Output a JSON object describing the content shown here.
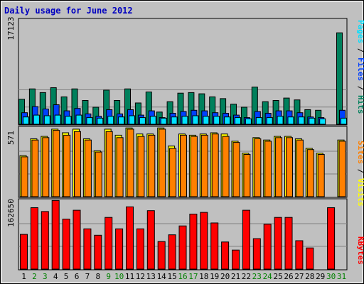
{
  "chart_data": [
    {
      "type": "bar",
      "panel": "hits-files-pages",
      "title": "Daily usage for June 2012",
      "ylim": [
        0,
        17123
      ],
      "y_tick_labels": [
        "17123"
      ],
      "legend_parts": [
        "Pages",
        "Files",
        "Hits"
      ],
      "legend_separator": " / ",
      "categories": [
        "1",
        "2",
        "3",
        "4",
        "5",
        "6",
        "7",
        "8",
        "9",
        "10",
        "11",
        "12",
        "13",
        "14",
        "15",
        "16",
        "17",
        "18",
        "19",
        "20",
        "21",
        "22",
        "23",
        "24",
        "25",
        "26",
        "27",
        "28",
        "29",
        "30",
        "31"
      ],
      "series": [
        {
          "name": "Hits",
          "color": "#00805c",
          "values": [
            4100,
            5800,
            5200,
            6000,
            4500,
            5800,
            3900,
            2800,
            5600,
            3900,
            5800,
            3500,
            5300,
            2000,
            3700,
            5100,
            5200,
            5000,
            4500,
            4200,
            3300,
            2800,
            6100,
            3700,
            3900,
            4300,
            4000,
            2400,
            2300,
            0,
            15000
          ]
        },
        {
          "name": "Files",
          "color": "#0040ff",
          "values": [
            1900,
            2900,
            2500,
            3200,
            2200,
            2600,
            1700,
            1300,
            2400,
            1700,
            2400,
            1500,
            2200,
            1100,
            1800,
            2100,
            2300,
            2200,
            1900,
            1800,
            1500,
            1100,
            2100,
            1800,
            2200,
            2200,
            1900,
            1200,
            1100,
            0,
            2300
          ]
        },
        {
          "name": "Pages",
          "color": "#00e0ff",
          "values": [
            1200,
            1500,
            1400,
            1500,
            1300,
            1500,
            1100,
            1000,
            1300,
            1200,
            1400,
            1100,
            1300,
            1000,
            1200,
            1300,
            1400,
            1300,
            1300,
            1200,
            1100,
            900,
            1100,
            1100,
            1300,
            1200,
            1200,
            1000,
            900,
            0,
            1000
          ]
        }
      ]
    },
    {
      "type": "bar",
      "panel": "visits-sites",
      "ylim": [
        0,
        571
      ],
      "y_tick_labels": [
        "571"
      ],
      "legend_parts": [
        "Sites",
        "Visits"
      ],
      "legend_separator": " / ",
      "categories": [
        "1",
        "2",
        "3",
        "4",
        "5",
        "6",
        "7",
        "8",
        "9",
        "10",
        "11",
        "12",
        "13",
        "14",
        "15",
        "16",
        "17",
        "18",
        "19",
        "20",
        "21",
        "22",
        "23",
        "24",
        "25",
        "26",
        "27",
        "28",
        "29",
        "30",
        "31"
      ],
      "series": [
        {
          "name": "Visits",
          "color": "#ffff00",
          "values": [
            340,
            480,
            500,
            560,
            530,
            560,
            480,
            380,
            560,
            510,
            570,
            520,
            520,
            570,
            420,
            520,
            510,
            520,
            530,
            520,
            460,
            360,
            490,
            470,
            500,
            500,
            480,
            400,
            360,
            0,
            470
          ]
        },
        {
          "name": "Sites",
          "color": "#ff8000",
          "values": [
            330,
            470,
            490,
            550,
            510,
            540,
            470,
            370,
            540,
            490,
            560,
            500,
            510,
            560,
            400,
            510,
            500,
            510,
            520,
            500,
            450,
            350,
            480,
            460,
            490,
            490,
            470,
            390,
            350,
            0,
            460
          ]
        }
      ]
    },
    {
      "type": "bar",
      "panel": "kbytes",
      "ylim": [
        0,
        162650
      ],
      "y_tick_labels": [
        "162650"
      ],
      "legend_parts": [
        "KBytes"
      ],
      "legend_separator": "",
      "categories": [
        "1",
        "2",
        "3",
        "4",
        "5",
        "6",
        "7",
        "8",
        "9",
        "10",
        "11",
        "12",
        "13",
        "14",
        "15",
        "16",
        "17",
        "18",
        "19",
        "20",
        "21",
        "22",
        "23",
        "24",
        "25",
        "26",
        "27",
        "28",
        "29",
        "30",
        "31"
      ],
      "series": [
        {
          "name": "KBytes",
          "color": "#ff0000",
          "values": [
            82000,
            145000,
            136000,
            162000,
            118000,
            139000,
            95000,
            80000,
            122000,
            95000,
            147000,
            95000,
            138000,
            65000,
            81000,
            102000,
            130000,
            134000,
            109000,
            64000,
            45000,
            139000,
            72000,
            106000,
            122000,
            122000,
            67000,
            50000,
            0,
            145000,
            0
          ]
        }
      ]
    }
  ],
  "weekend_days": [
    "2",
    "3",
    "9",
    "10",
    "16",
    "17",
    "23",
    "24",
    "30",
    "31"
  ],
  "colors": {
    "frame_bg": "#c0c0c0",
    "plot_bg": "#c0c0c0",
    "title_color": "#0000c0",
    "label_color": "#000000",
    "weekend_color": "#008000",
    "grid": "#808080"
  }
}
